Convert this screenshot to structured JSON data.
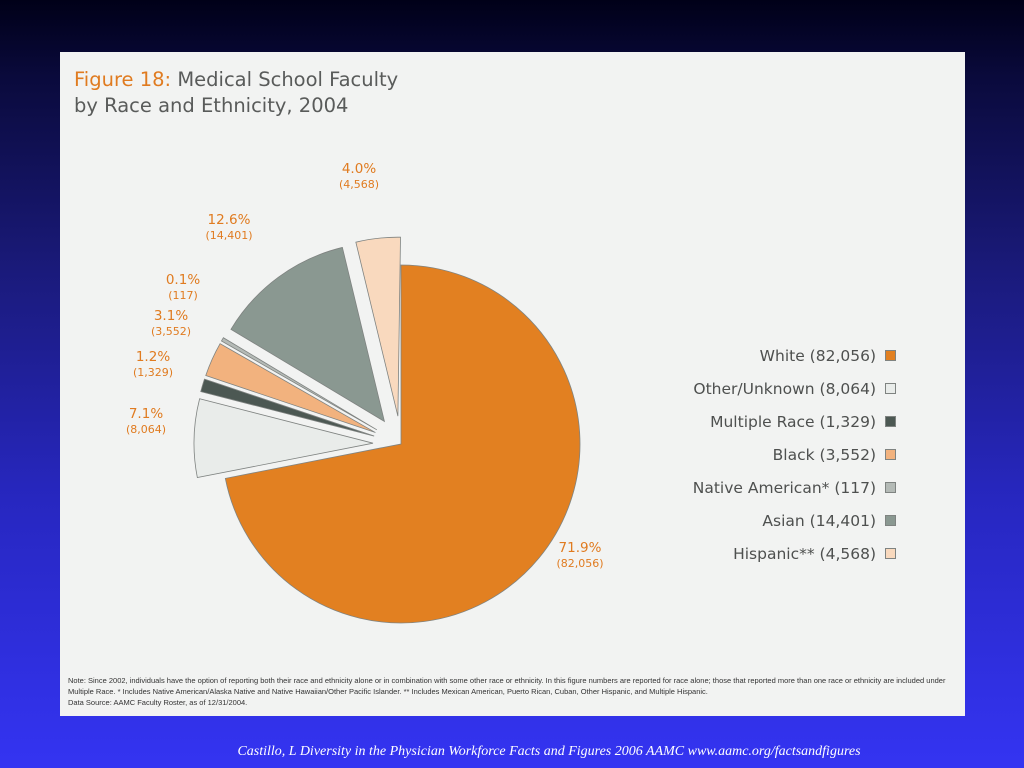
{
  "figure": {
    "label": "Figure 18:",
    "title": " Medical School Faculty\nby Race and Ethnicity, 2004"
  },
  "colors": {
    "accent": "#e07b20",
    "label": "#e07b20",
    "slice_outline": "#7f8381"
  },
  "chart_data": {
    "type": "pie",
    "title": "Figure 18: Medical School Faculty by Race and Ethnicity, 2004",
    "slices": [
      {
        "name": "White",
        "count": 82056,
        "percent": 71.9,
        "pct_label": "71.9%",
        "count_label": "(82,056)",
        "legend": "White (82,056)",
        "color": "#e28021",
        "exploded": false
      },
      {
        "name": "Other/Unknown",
        "count": 8064,
        "percent": 7.1,
        "pct_label": "7.1%",
        "count_label": "(8,064)",
        "legend": "Other/Unknown (8,064)",
        "color": "#e9ecea",
        "exploded": true
      },
      {
        "name": "Multiple Race",
        "count": 1329,
        "percent": 1.2,
        "pct_label": "1.2%",
        "count_label": "(1,329)",
        "legend": "Multiple Race (1,329)",
        "color": "#4c5853",
        "exploded": true
      },
      {
        "name": "Black",
        "count": 3552,
        "percent": 3.1,
        "pct_label": "3.1%",
        "count_label": "(3,552)",
        "legend": "Black (3,552)",
        "color": "#f2b27e",
        "exploded": true
      },
      {
        "name": "Native American*",
        "count": 117,
        "percent": 0.1,
        "pct_label": "0.1%",
        "count_label": "(117)",
        "legend": "Native American* (117)",
        "color": "#b4bab6",
        "exploded": true
      },
      {
        "name": "Asian",
        "count": 14401,
        "percent": 12.6,
        "pct_label": "12.6%",
        "count_label": "(14,401)",
        "legend": "Asian (14,401)",
        "color": "#8a9891",
        "exploded": true
      },
      {
        "name": "Hispanic**",
        "count": 4568,
        "percent": 4.0,
        "pct_label": "4.0%",
        "count_label": "(4,568)",
        "legend": "Hispanic** (4,568)",
        "color": "#f9d9be",
        "exploded": true
      }
    ],
    "start_angle_deg": 0,
    "direction": "clockwise",
    "legend_position": "right"
  },
  "note": "Note: Since 2002, individuals have the option of reporting both their race and ethnicity alone or in combination with some other race or ethnicity. In this figure numbers are reported for race alone; those that reported more than one race or ethnicity are included under Multiple Race. * Includes Native American/Alaska Native and Native Hawaiian/Other Pacific Islander. ** Includes Mexican American, Puerto Rican, Cuban, Other Hispanic, and Multiple Hispanic.",
  "source": "Data Source: AAMC Faculty Roster, as of 12/31/2004.",
  "caption": "Castillo, L Diversity in the Physician Workforce Facts and Figures  2006  AAMC www.aamc.org/factsandfigures"
}
